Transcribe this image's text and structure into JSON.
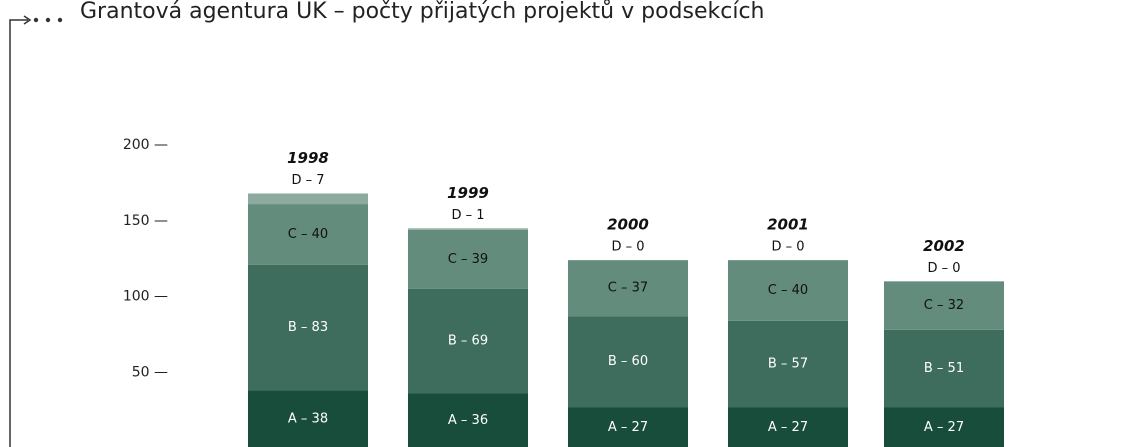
{
  "chart_data": {
    "type": "stacked_bar",
    "title": "Grantová agentura UK – počty přijatých projektů v podsekcích",
    "categories": [
      "1998",
      "1999",
      "2000",
      "2001",
      "2002"
    ],
    "series": [
      {
        "color": "#174d3a",
        "values": [
          38,
          36,
          27,
          27,
          27
        ],
        "value_labels": [
          "A – 38",
          "A – 36",
          "A – 27",
          "A – 27",
          "A – 27"
        ]
      },
      {
        "color": "#3e6c5d",
        "values": [
          83,
          69,
          60,
          57,
          51
        ],
        "value_labels": [
          "B – 83",
          "B – 69",
          "B – 60",
          "B – 57",
          "B – 51"
        ]
      },
      {
        "color": "#638c7d",
        "values": [
          40,
          39,
          37,
          40,
          32
        ],
        "value_labels": [
          "C – 40",
          "C – 39",
          "C – 37",
          "C – 40",
          "C – 32"
        ]
      },
      {
        "color": "#8cab9e",
        "values": [
          7,
          1,
          0,
          0,
          0
        ],
        "value_labels": [
          "D – 7",
          "D – 1",
          "D – 0",
          "D – 0",
          "D – 0"
        ]
      }
    ],
    "ylim": [
      0,
      200
    ],
    "yticks": [
      {
        "value": 50,
        "label": "50 —"
      },
      {
        "value": 100,
        "label": "100 —"
      },
      {
        "value": 150,
        "label": "150 —"
      },
      {
        "value": 200,
        "label": "200 —"
      }
    ]
  }
}
